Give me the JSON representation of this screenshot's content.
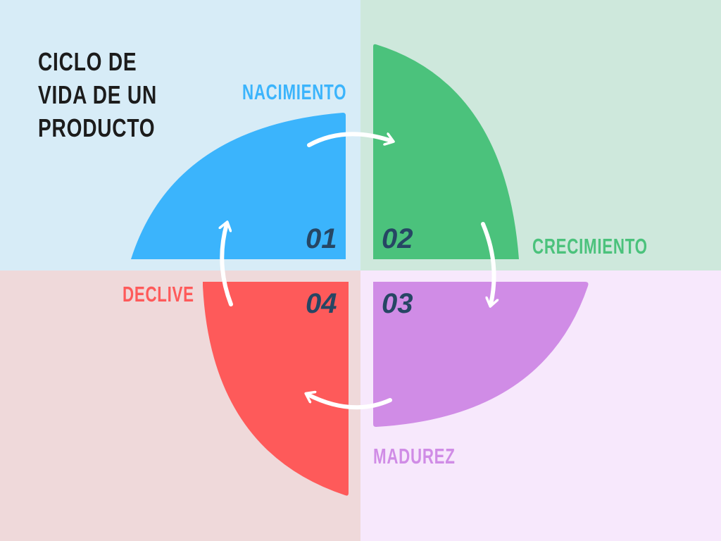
{
  "title_lines": [
    "CICLO DE",
    "VIDA DE UN",
    "PRODUCTO"
  ],
  "stages": [
    {
      "label": "NACIMIENTO",
      "number": "01",
      "color": "#3bb4fc",
      "bg": "#d7ecf7"
    },
    {
      "label": "CRECIMIENTO",
      "number": "02",
      "color": "#4bc27c",
      "bg": "#cee8dc"
    },
    {
      "label": "MADUREZ",
      "number": "03",
      "color": "#d08ce6",
      "bg": "#f7e8fc"
    },
    {
      "label": "DECLIVE",
      "number": "04",
      "color": "#fe5a5a",
      "bg": "#efd9da"
    }
  ],
  "number_color": "#264664",
  "arrow_color": "#ffffff"
}
